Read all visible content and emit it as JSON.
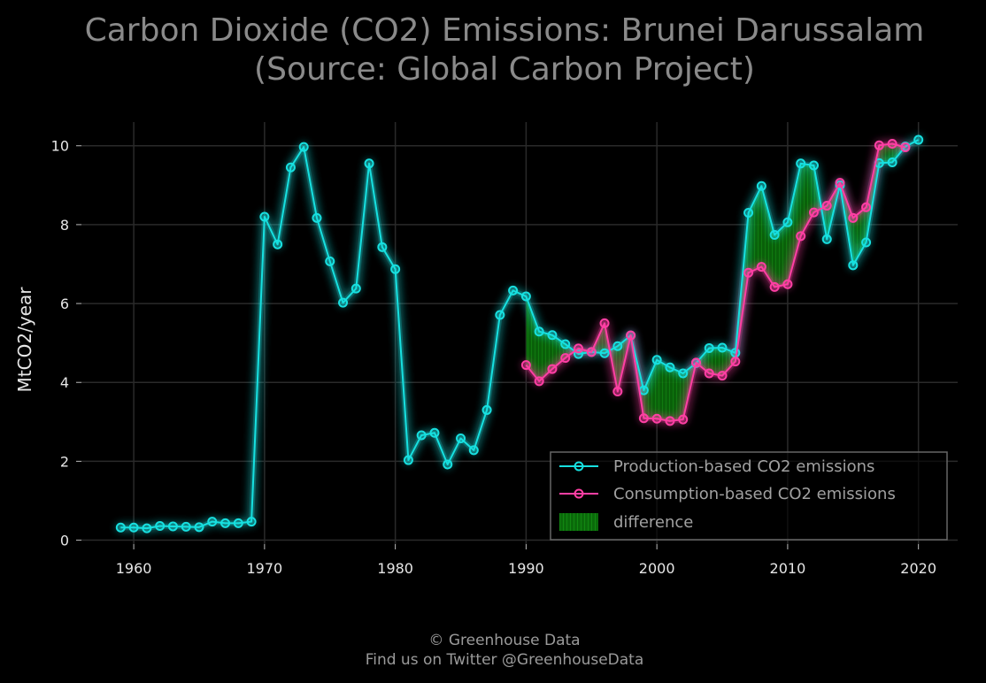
{
  "chart_data": {
    "type": "line",
    "title_line1": "Carbon Dioxide (CO2) Emissions: Brunei Darussalam",
    "title_line2": "(Source: Global Carbon Project)",
    "ylabel": "MtCO2/year",
    "xlim": [
      1956,
      2023
    ],
    "ylim": [
      -0.1,
      10.6
    ],
    "x_ticks": [
      1960,
      1970,
      1980,
      1990,
      2000,
      2010,
      2020
    ],
    "y_ticks": [
      0,
      2,
      4,
      6,
      8,
      10
    ],
    "grid": true,
    "legend_placement": "lower-right",
    "series": [
      {
        "name": "Production-based CO2 emissions",
        "color": "#17e0e0",
        "x": [
          1959,
          1960,
          1961,
          1962,
          1963,
          1964,
          1965,
          1966,
          1967,
          1968,
          1969,
          1970,
          1971,
          1972,
          1973,
          1974,
          1975,
          1976,
          1977,
          1978,
          1979,
          1980,
          1981,
          1982,
          1983,
          1984,
          1985,
          1986,
          1987,
          1988,
          1989,
          1990,
          1991,
          1992,
          1993,
          1994,
          1995,
          1996,
          1997,
          1998,
          1999,
          2000,
          2001,
          2002,
          2003,
          2004,
          2005,
          2006,
          2007,
          2008,
          2009,
          2010,
          2011,
          2012,
          2013,
          2014,
          2015,
          2016,
          2017,
          2018,
          2019,
          2020
        ],
        "values": [
          0.32,
          0.32,
          0.3,
          0.36,
          0.35,
          0.34,
          0.33,
          0.47,
          0.43,
          0.43,
          0.47,
          8.2,
          7.5,
          9.45,
          9.97,
          8.17,
          7.07,
          6.02,
          6.38,
          9.55,
          7.43,
          6.87,
          2.03,
          2.66,
          2.72,
          1.92,
          2.58,
          2.28,
          3.3,
          5.71,
          6.33,
          6.18,
          5.29,
          5.2,
          4.97,
          4.72,
          4.77,
          4.74,
          4.92,
          5.19,
          3.8,
          4.57,
          4.38,
          4.23,
          4.49,
          4.87,
          4.88,
          4.75,
          8.3,
          8.98,
          7.74,
          8.06,
          9.55,
          9.5,
          7.63,
          9.0,
          6.97,
          7.55,
          9.56,
          9.58,
          9.98,
          10.15
        ]
      },
      {
        "name": "Consumption-based CO2 emissions",
        "color": "#ff3fa4",
        "x": [
          1990,
          1991,
          1992,
          1993,
          1994,
          1995,
          1996,
          1997,
          1998,
          1999,
          2000,
          2001,
          2002,
          2003,
          2004,
          2005,
          2006,
          2007,
          2008,
          2009,
          2010,
          2011,
          2012,
          2013,
          2014,
          2015,
          2016,
          2017,
          2018,
          2019
        ],
        "values": [
          4.44,
          4.03,
          4.34,
          4.62,
          4.86,
          4.77,
          5.5,
          3.77,
          5.19,
          3.09,
          3.08,
          3.02,
          3.06,
          4.5,
          4.23,
          4.17,
          4.53,
          6.78,
          6.93,
          6.42,
          6.49,
          7.71,
          8.31,
          8.48,
          9.06,
          8.17,
          8.44,
          10.01,
          10.05,
          9.96
        ]
      }
    ],
    "difference_label": "difference",
    "difference_color": "#0a8a0a"
  },
  "footer": {
    "line1": "© Greenhouse Data",
    "line2": "Find us on Twitter @GreenhouseData"
  }
}
